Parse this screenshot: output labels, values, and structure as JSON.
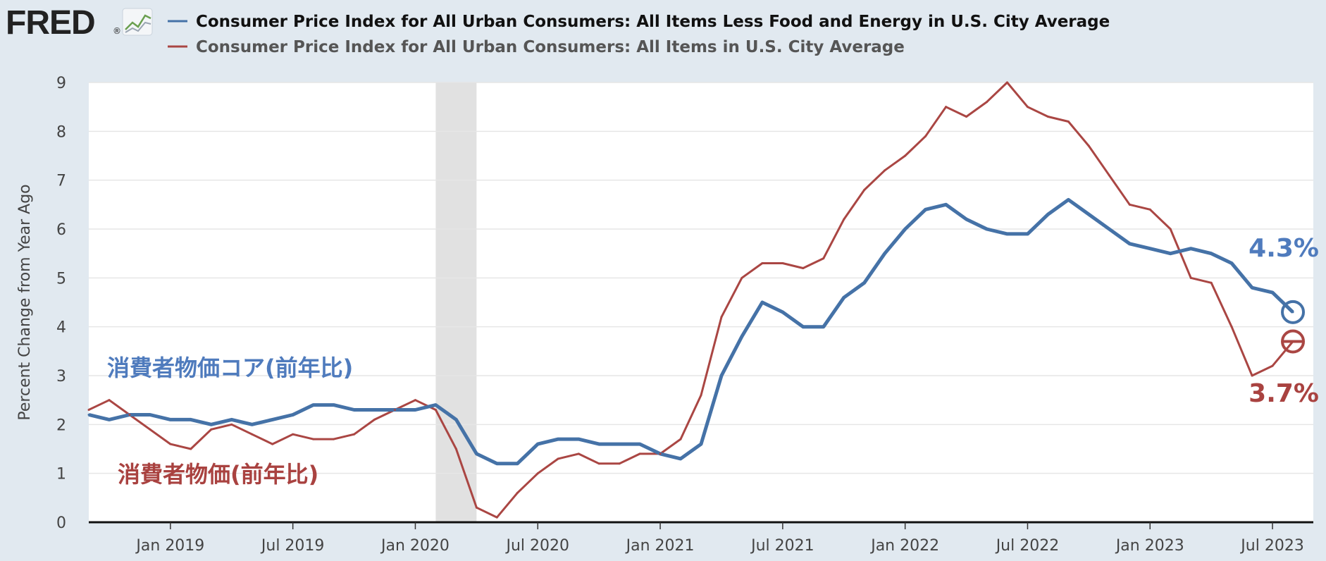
{
  "logo": {
    "text": "FRED",
    "registered": "®"
  },
  "colors": {
    "core": "#4572a7",
    "headline": "#aa4643",
    "recession": "#e1e1e1",
    "grid": "#e6e6e6",
    "background": "#e1e9f0",
    "plot_bg": "#ffffff"
  },
  "annotations": {
    "core_jp": "消費者物価コア(前年比)",
    "headline_jp": "消費者物価(前年比)",
    "core_last": "4.3%",
    "headline_last": "3.7%"
  },
  "chart_data": {
    "type": "line",
    "title": "",
    "xlabel": "",
    "ylabel": "Percent Change from Year Ago",
    "ylim": [
      0,
      9
    ],
    "yticks": [
      0,
      1,
      2,
      3,
      4,
      5,
      6,
      7,
      8,
      9
    ],
    "x_tick_labels": [
      "Jan 2019",
      "Jul 2019",
      "Jan 2020",
      "Jul 2020",
      "Jan 2021",
      "Jul 2021",
      "Jan 2022",
      "Jul 2022",
      "Jan 2023",
      "Jul 2023"
    ],
    "grid": true,
    "legend_position": "top",
    "recession": {
      "start": "2020-02",
      "end": "2020-04"
    },
    "x": [
      "2018-09",
      "2018-10",
      "2018-11",
      "2018-12",
      "2019-01",
      "2019-02",
      "2019-03",
      "2019-04",
      "2019-05",
      "2019-06",
      "2019-07",
      "2019-08",
      "2019-09",
      "2019-10",
      "2019-11",
      "2019-12",
      "2020-01",
      "2020-02",
      "2020-03",
      "2020-04",
      "2020-05",
      "2020-06",
      "2020-07",
      "2020-08",
      "2020-09",
      "2020-10",
      "2020-11",
      "2020-12",
      "2021-01",
      "2021-02",
      "2021-03",
      "2021-04",
      "2021-05",
      "2021-06",
      "2021-07",
      "2021-08",
      "2021-09",
      "2021-10",
      "2021-11",
      "2021-12",
      "2022-01",
      "2022-02",
      "2022-03",
      "2022-04",
      "2022-05",
      "2022-06",
      "2022-07",
      "2022-08",
      "2022-09",
      "2022-10",
      "2022-11",
      "2022-12",
      "2023-01",
      "2023-02",
      "2023-03",
      "2023-04",
      "2023-05",
      "2023-06",
      "2023-07",
      "2023-08"
    ],
    "series": [
      {
        "name": "Consumer Price Index for All Urban Consumers: All Items Less Food and Energy in U.S. City Average",
        "color": "#4572a7",
        "values": [
          2.2,
          2.1,
          2.2,
          2.2,
          2.1,
          2.1,
          2.0,
          2.1,
          2.0,
          2.1,
          2.2,
          2.4,
          2.4,
          2.3,
          2.3,
          2.3,
          2.3,
          2.4,
          2.1,
          1.4,
          1.2,
          1.2,
          1.6,
          1.7,
          1.7,
          1.6,
          1.6,
          1.6,
          1.4,
          1.3,
          1.6,
          3.0,
          3.8,
          4.5,
          4.3,
          4.0,
          4.0,
          4.6,
          4.9,
          5.5,
          6.0,
          6.4,
          6.5,
          6.2,
          6.0,
          5.9,
          5.9,
          6.3,
          6.6,
          6.3,
          6.0,
          5.7,
          5.6,
          5.5,
          5.6,
          5.5,
          5.3,
          4.8,
          4.7,
          4.3
        ]
      },
      {
        "name": "Consumer Price Index for All Urban Consumers: All Items in U.S. City Average",
        "color": "#aa4643",
        "values": [
          2.3,
          2.5,
          2.2,
          1.9,
          1.6,
          1.5,
          1.9,
          2.0,
          1.8,
          1.6,
          1.8,
          1.7,
          1.7,
          1.8,
          2.1,
          2.3,
          2.5,
          2.3,
          1.5,
          0.3,
          0.1,
          0.6,
          1.0,
          1.3,
          1.4,
          1.2,
          1.2,
          1.4,
          1.4,
          1.7,
          2.6,
          4.2,
          5.0,
          5.3,
          5.3,
          5.2,
          5.4,
          6.2,
          6.8,
          7.2,
          7.5,
          7.9,
          8.5,
          8.3,
          8.6,
          9.0,
          8.5,
          8.3,
          8.2,
          7.7,
          7.1,
          6.5,
          6.4,
          6.0,
          5.0,
          4.9,
          4.0,
          3.0,
          3.2,
          3.7
        ]
      }
    ]
  }
}
